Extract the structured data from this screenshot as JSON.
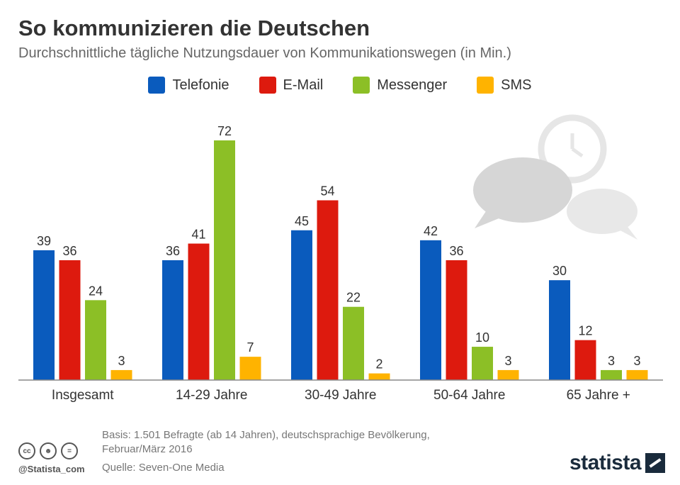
{
  "header": {
    "title": "So kommunizieren die Deutschen",
    "subtitle": "Durchschnittliche tägliche Nutzungsdauer von Kommunikationswegen (in Min.)"
  },
  "chart_data": {
    "type": "bar",
    "title": "So kommunizieren die Deutschen",
    "subtitle": "Durchschnittliche tägliche Nutzungsdauer von Kommunikationswegen (in Min.)",
    "categories": [
      "Insgesamt",
      "14-29 Jahre",
      "30-49 Jahre",
      "50-64 Jahre",
      "65 Jahre +"
    ],
    "series": [
      {
        "name": "Telefonie",
        "color": "#0a5bbd",
        "values": [
          39,
          36,
          45,
          42,
          30
        ]
      },
      {
        "name": "E-Mail",
        "color": "#dd1a0e",
        "values": [
          36,
          41,
          54,
          36,
          12
        ]
      },
      {
        "name": "Messenger",
        "color": "#8cbf26",
        "values": [
          24,
          72,
          22,
          10,
          3
        ]
      },
      {
        "name": "SMS",
        "color": "#ffb300",
        "values": [
          3,
          7,
          2,
          3,
          3
        ]
      }
    ],
    "xlabel": "",
    "ylabel": "",
    "ylim": [
      0,
      72
    ],
    "legend_position": "top-center",
    "grid": false
  },
  "footer": {
    "note_line1": "Basis: 1.501 Befragte (ab 14 Jahren), deutschsprachige Bevölkerung,",
    "note_line2": "Februar/März 2016",
    "source": "Quelle: Seven-One Media",
    "handle": "@Statista_com",
    "brand": "statista"
  }
}
